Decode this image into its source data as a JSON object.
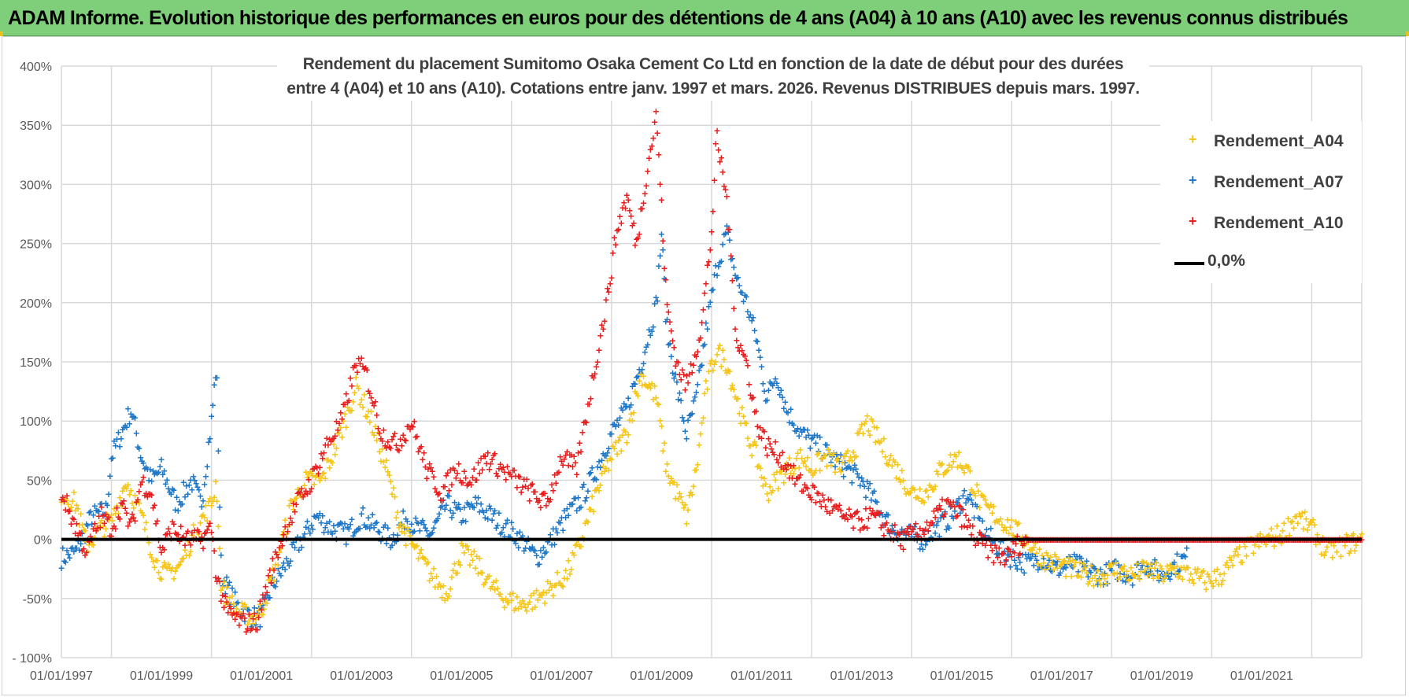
{
  "banner": {
    "title": "ADAM Informe. Evolution historique des performances en euros pour des détentions de 4 ans (A04) à 10 ans (A10) avec les revenus connus distribués"
  },
  "chart_data": {
    "type": "scatter",
    "title_line1": "Rendement du placement Sumitomo Osaka Cement Co Ltd en fonction de la date de début pour des durées",
    "title_line2": "entre 4 (A04) et 10 ans (A10).  Cotations entre janv. 1997 et mars. 2026. Revenus DISTRIBUES depuis mars. 1997.",
    "xlabel": "",
    "ylabel": "",
    "xlim": [
      1997.0,
      2023.0
    ],
    "ylim": [
      -100,
      400
    ],
    "x_ticks": [
      1997,
      1999,
      2001,
      2003,
      2005,
      2007,
      2009,
      2011,
      2013,
      2015,
      2017,
      2019,
      2021
    ],
    "x_tick_labels": [
      "01/01/1997",
      "01/01/1999",
      "01/01/2001",
      "01/01/2003",
      "01/01/2005",
      "01/01/2007",
      "01/01/2009",
      "01/01/2011",
      "01/01/2013",
      "01/01/2015",
      "01/01/2017",
      "01/01/2019",
      "01/01/2021"
    ],
    "y_ticks": [
      -100,
      -50,
      0,
      50,
      100,
      150,
      200,
      250,
      300,
      350,
      400
    ],
    "y_tick_labels": [
      "- 100%",
      "-50%",
      "0%",
      "50%",
      "100%",
      "150%",
      "200%",
      "250%",
      "300%",
      "350%",
      "400%"
    ],
    "grid": true,
    "legend_position": "top-right",
    "zero_line": {
      "name": "0,0%",
      "color": "#000000",
      "y": 0
    },
    "series": [
      {
        "name": "Rendement_A04",
        "color": "#f5c518",
        "points": [
          [
            1997.0,
            40
          ],
          [
            1997.3,
            30
          ],
          [
            1997.5,
            -5
          ],
          [
            1997.8,
            10
          ],
          [
            1998.0,
            15
          ],
          [
            1998.3,
            50
          ],
          [
            1998.6,
            20
          ],
          [
            1998.9,
            -20
          ],
          [
            1999.1,
            -30
          ],
          [
            1999.4,
            -20
          ],
          [
            1999.7,
            10
          ],
          [
            2000.0,
            30
          ],
          [
            2000.1,
            50
          ],
          [
            2000.2,
            -40
          ],
          [
            2000.5,
            -60
          ],
          [
            2000.8,
            -65
          ],
          [
            2001.0,
            -60
          ],
          [
            2001.3,
            -20
          ],
          [
            2001.6,
            30
          ],
          [
            2001.9,
            50
          ],
          [
            2002.2,
            50
          ],
          [
            2002.5,
            80
          ],
          [
            2002.9,
            130
          ],
          [
            2003.2,
            100
          ],
          [
            2003.5,
            60
          ],
          [
            2003.8,
            10
          ],
          [
            2004.1,
            -10
          ],
          [
            2004.4,
            -30
          ],
          [
            2004.7,
            -45
          ],
          [
            2005.0,
            -10
          ],
          [
            2005.3,
            -20
          ],
          [
            2005.6,
            -40
          ],
          [
            2005.9,
            -50
          ],
          [
            2006.2,
            -55
          ],
          [
            2006.5,
            -50
          ],
          [
            2006.8,
            -40
          ],
          [
            2007.1,
            -30
          ],
          [
            2007.4,
            0
          ],
          [
            2007.7,
            40
          ],
          [
            2008.0,
            70
          ],
          [
            2008.3,
            90
          ],
          [
            2008.6,
            140
          ],
          [
            2008.9,
            120
          ],
          [
            2009.1,
            60
          ],
          [
            2009.3,
            40
          ],
          [
            2009.5,
            20
          ],
          [
            2009.7,
            60
          ],
          [
            2009.9,
            130
          ],
          [
            2010.1,
            160
          ],
          [
            2010.3,
            150
          ],
          [
            2010.5,
            120
          ],
          [
            2010.7,
            90
          ],
          [
            2010.9,
            70
          ],
          [
            2011.1,
            40
          ],
          [
            2011.3,
            50
          ],
          [
            2011.5,
            60
          ],
          [
            2011.8,
            70
          ],
          [
            2012.0,
            60
          ],
          [
            2012.3,
            70
          ],
          [
            2012.6,
            60
          ],
          [
            2012.9,
            80
          ],
          [
            2013.1,
            100
          ],
          [
            2013.4,
            80
          ],
          [
            2013.7,
            60
          ],
          [
            2014.0,
            40
          ],
          [
            2014.3,
            40
          ],
          [
            2014.6,
            60
          ],
          [
            2014.9,
            70
          ],
          [
            2015.1,
            60
          ],
          [
            2015.4,
            30
          ],
          [
            2015.7,
            20
          ],
          [
            2016.0,
            10
          ],
          [
            2016.3,
            0
          ],
          [
            2016.6,
            -15
          ],
          [
            2016.9,
            -20
          ],
          [
            2017.2,
            -25
          ],
          [
            2017.5,
            -30
          ],
          [
            2017.8,
            -30
          ],
          [
            2018.1,
            -25
          ],
          [
            2018.4,
            -30
          ],
          [
            2018.7,
            -25
          ],
          [
            2019.0,
            -30
          ],
          [
            2019.3,
            -25
          ],
          [
            2019.6,
            -30
          ],
          [
            2019.9,
            -35
          ],
          [
            2020.2,
            -30
          ],
          [
            2020.5,
            -15
          ],
          [
            2020.8,
            -5
          ],
          [
            2021.1,
            0
          ],
          [
            2021.4,
            5
          ],
          [
            2021.7,
            20
          ],
          [
            2022.0,
            10
          ],
          [
            2022.3,
            -10
          ],
          [
            2022.6,
            -5
          ],
          [
            2023.0,
            0
          ]
        ]
      },
      {
        "name": "Rendement_A07",
        "color": "#1f77c8",
        "points": [
          [
            1997.0,
            -15
          ],
          [
            1997.3,
            -10
          ],
          [
            1997.6,
            20
          ],
          [
            1997.9,
            25
          ],
          [
            1998.0,
            70
          ],
          [
            1998.2,
            90
          ],
          [
            1998.4,
            110
          ],
          [
            1998.6,
            70
          ],
          [
            1998.8,
            50
          ],
          [
            1999.0,
            60
          ],
          [
            1999.3,
            30
          ],
          [
            1999.6,
            50
          ],
          [
            1999.8,
            30
          ],
          [
            2000.0,
            100
          ],
          [
            2000.1,
            150
          ],
          [
            2000.2,
            -30
          ],
          [
            2000.5,
            -55
          ],
          [
            2000.8,
            -65
          ],
          [
            2001.0,
            -65
          ],
          [
            2001.2,
            -40
          ],
          [
            2001.5,
            -20
          ],
          [
            2001.8,
            0
          ],
          [
            2002.1,
            20
          ],
          [
            2002.4,
            10
          ],
          [
            2002.7,
            5
          ],
          [
            2003.0,
            20
          ],
          [
            2003.3,
            10
          ],
          [
            2003.6,
            0
          ],
          [
            2003.9,
            20
          ],
          [
            2004.1,
            10
          ],
          [
            2004.4,
            5
          ],
          [
            2004.7,
            30
          ],
          [
            2005.0,
            20
          ],
          [
            2005.3,
            30
          ],
          [
            2005.6,
            20
          ],
          [
            2005.9,
            10
          ],
          [
            2006.2,
            0
          ],
          [
            2006.5,
            -15
          ],
          [
            2006.8,
            0
          ],
          [
            2007.1,
            20
          ],
          [
            2007.4,
            35
          ],
          [
            2007.7,
            60
          ],
          [
            2008.0,
            90
          ],
          [
            2008.3,
            110
          ],
          [
            2008.6,
            150
          ],
          [
            2008.9,
            200
          ],
          [
            2009.0,
            260
          ],
          [
            2009.1,
            180
          ],
          [
            2009.3,
            130
          ],
          [
            2009.5,
            90
          ],
          [
            2009.7,
            120
          ],
          [
            2009.9,
            180
          ],
          [
            2010.1,
            230
          ],
          [
            2010.3,
            260
          ],
          [
            2010.5,
            220
          ],
          [
            2010.7,
            200
          ],
          [
            2010.9,
            170
          ],
          [
            2011.1,
            120
          ],
          [
            2011.3,
            140
          ],
          [
            2011.5,
            110
          ],
          [
            2011.8,
            90
          ],
          [
            2012.1,
            80
          ],
          [
            2012.4,
            70
          ],
          [
            2012.7,
            60
          ],
          [
            2013.0,
            50
          ],
          [
            2013.3,
            30
          ],
          [
            2013.6,
            10
          ],
          [
            2013.9,
            5
          ],
          [
            2014.2,
            0
          ],
          [
            2014.5,
            10
          ],
          [
            2014.8,
            20
          ],
          [
            2015.1,
            40
          ],
          [
            2015.4,
            10
          ],
          [
            2015.7,
            -5
          ],
          [
            2016.0,
            -15
          ],
          [
            2016.3,
            -20
          ],
          [
            2016.6,
            -15
          ],
          [
            2016.9,
            -25
          ],
          [
            2017.2,
            -20
          ],
          [
            2017.5,
            -25
          ],
          [
            2017.8,
            -30
          ],
          [
            2018.1,
            -25
          ],
          [
            2018.4,
            -30
          ],
          [
            2018.7,
            -20
          ],
          [
            2019.0,
            -30
          ],
          [
            2019.3,
            -20
          ],
          [
            2019.5,
            -15
          ]
        ]
      },
      {
        "name": "Rendement_A10",
        "color": "#e81e1e",
        "points": [
          [
            1997.0,
            40
          ],
          [
            1997.2,
            20
          ],
          [
            1997.5,
            -10
          ],
          [
            1997.8,
            20
          ],
          [
            1998.0,
            10
          ],
          [
            1998.2,
            30
          ],
          [
            1998.4,
            10
          ],
          [
            1998.6,
            50
          ],
          [
            1998.8,
            40
          ],
          [
            1999.0,
            -10
          ],
          [
            1999.2,
            10
          ],
          [
            1999.5,
            0
          ],
          [
            1999.8,
            0
          ],
          [
            2000.0,
            10
          ],
          [
            2000.1,
            -30
          ],
          [
            2000.3,
            -60
          ],
          [
            2000.6,
            -70
          ],
          [
            2000.9,
            -70
          ],
          [
            2001.1,
            -40
          ],
          [
            2001.4,
            0
          ],
          [
            2001.7,
            30
          ],
          [
            2002.0,
            50
          ],
          [
            2002.3,
            80
          ],
          [
            2002.6,
            100
          ],
          [
            2002.9,
            150
          ],
          [
            2003.1,
            140
          ],
          [
            2003.4,
            90
          ],
          [
            2003.7,
            80
          ],
          [
            2004.0,
            100
          ],
          [
            2004.3,
            60
          ],
          [
            2004.6,
            40
          ],
          [
            2004.9,
            60
          ],
          [
            2005.2,
            50
          ],
          [
            2005.5,
            70
          ],
          [
            2005.8,
            60
          ],
          [
            2006.1,
            50
          ],
          [
            2006.4,
            40
          ],
          [
            2006.7,
            30
          ],
          [
            2007.0,
            70
          ],
          [
            2007.3,
            60
          ],
          [
            2007.6,
            130
          ],
          [
            2007.9,
            200
          ],
          [
            2008.1,
            260
          ],
          [
            2008.3,
            290
          ],
          [
            2008.5,
            250
          ],
          [
            2008.7,
            310
          ],
          [
            2008.9,
            360
          ],
          [
            2009.1,
            200
          ],
          [
            2009.3,
            150
          ],
          [
            2009.5,
            130
          ],
          [
            2009.8,
            180
          ],
          [
            2010.0,
            260
          ],
          [
            2010.1,
            340
          ],
          [
            2010.3,
            290
          ],
          [
            2010.5,
            170
          ],
          [
            2010.7,
            150
          ],
          [
            2010.9,
            100
          ],
          [
            2011.1,
            80
          ],
          [
            2011.4,
            70
          ],
          [
            2011.7,
            50
          ],
          [
            2012.0,
            40
          ],
          [
            2012.3,
            30
          ],
          [
            2012.6,
            20
          ],
          [
            2012.9,
            15
          ],
          [
            2013.2,
            20
          ],
          [
            2013.5,
            10
          ],
          [
            2013.8,
            0
          ],
          [
            2014.1,
            5
          ],
          [
            2014.4,
            15
          ],
          [
            2014.7,
            30
          ],
          [
            2015.0,
            20
          ],
          [
            2015.3,
            0
          ],
          [
            2015.6,
            -10
          ],
          [
            2015.9,
            -15
          ],
          [
            2016.1,
            -5
          ],
          [
            2016.3,
            0
          ],
          [
            2017.0,
            0
          ],
          [
            2018.0,
            0
          ],
          [
            2019.0,
            0
          ],
          [
            2020.0,
            0
          ],
          [
            2021.0,
            0
          ],
          [
            2022.0,
            0
          ],
          [
            2023.0,
            0
          ]
        ]
      }
    ]
  }
}
